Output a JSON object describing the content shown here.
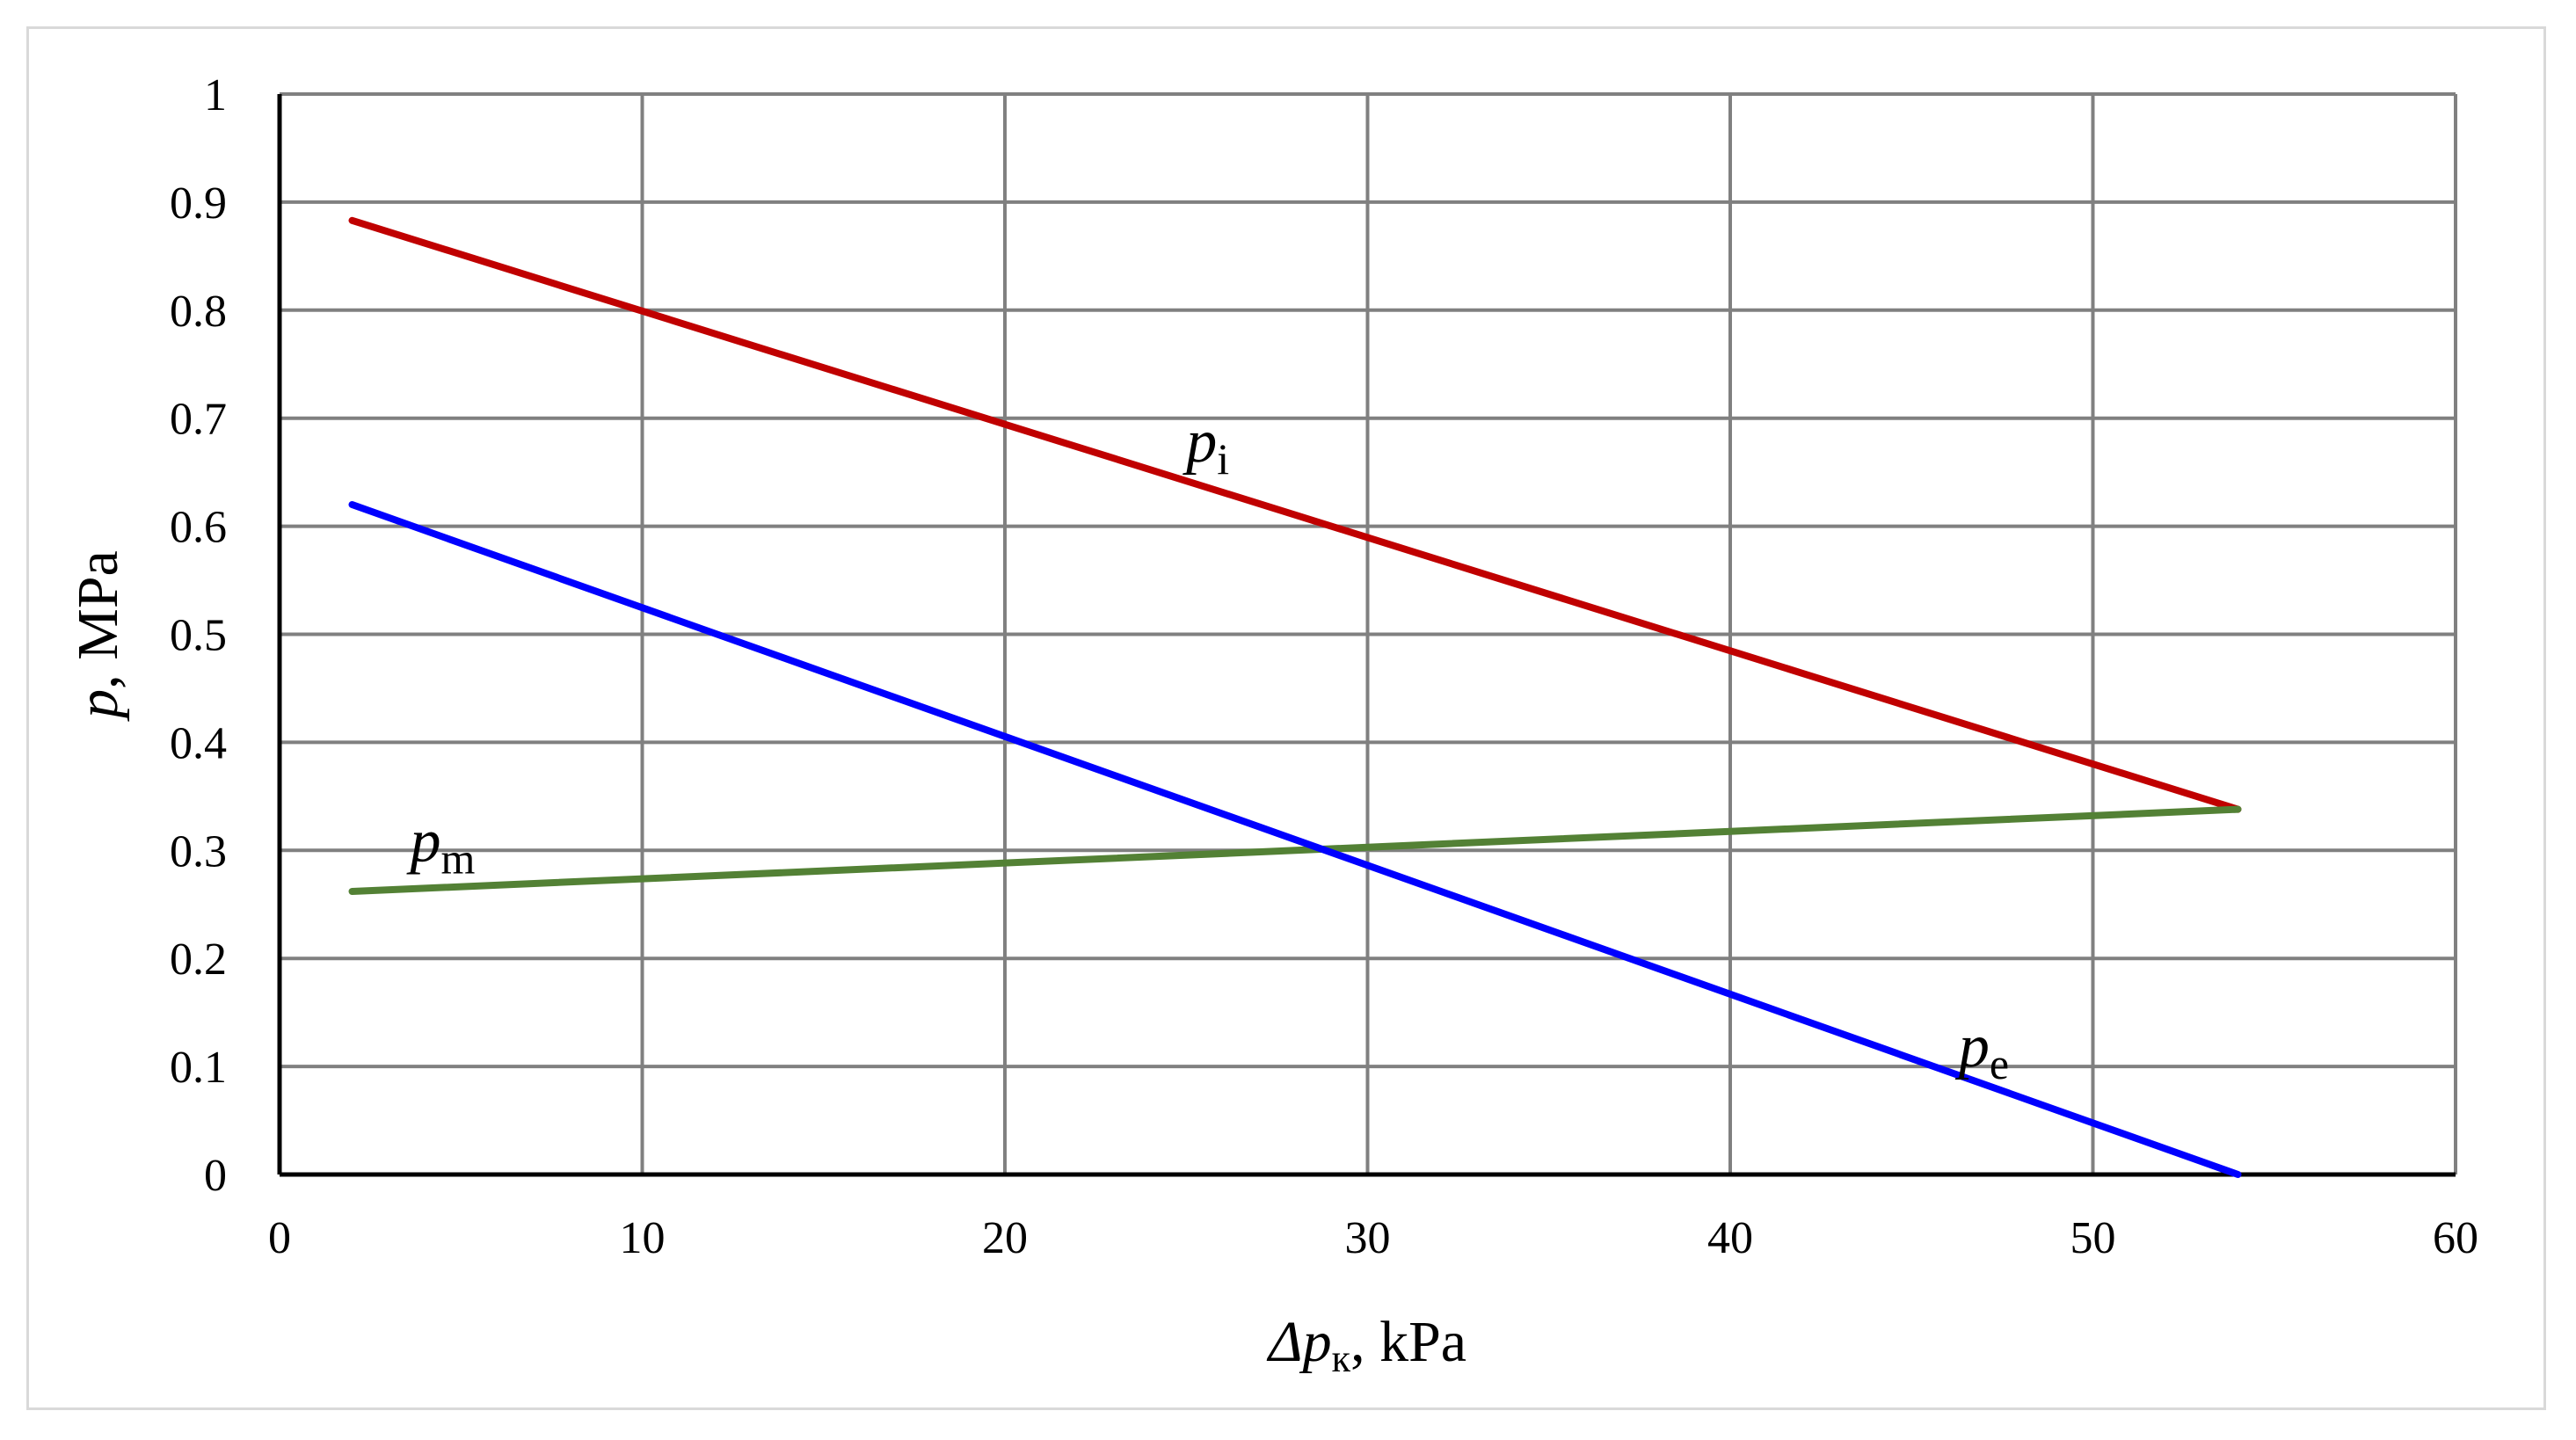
{
  "chart_data": {
    "type": "line",
    "title": "",
    "xlabel": {
      "italic": "Δp",
      "sub": "к",
      "rest": ", kPa"
    },
    "ylabel": {
      "italic": "p",
      "rest": ", MPa"
    },
    "xlim": [
      0,
      60
    ],
    "ylim": [
      0,
      1
    ],
    "xticks": [
      0,
      10,
      20,
      30,
      40,
      50,
      60
    ],
    "yticks": [
      0,
      0.1,
      0.2,
      0.3,
      0.4,
      0.5,
      0.6,
      0.7,
      0.8,
      0.9,
      1
    ],
    "xtick_labels": [
      "0",
      "10",
      "20",
      "30",
      "40",
      "50",
      "60"
    ],
    "ytick_labels": [
      "0",
      "0.1",
      "0.2",
      "0.3",
      "0.4",
      "0.5",
      "0.6",
      "0.7",
      "0.8",
      "0.9",
      "1"
    ],
    "grid": true,
    "series": [
      {
        "id": "pi",
        "name": "p_i",
        "label_main": "p",
        "label_sub": "i",
        "color": "#c00000",
        "x": [
          2,
          54
        ],
        "y": [
          0.883,
          0.338
        ],
        "label_at": [
          25,
          0.66
        ]
      },
      {
        "id": "pm",
        "name": "p_m",
        "label_main": "p",
        "label_sub": "m",
        "color": "#538135",
        "x": [
          2,
          54
        ],
        "y": [
          0.262,
          0.338
        ],
        "label_at": [
          3.6,
          0.29
        ]
      },
      {
        "id": "pe",
        "name": "p_e",
        "label_main": "p",
        "label_sub": "e",
        "color": "#0000ff",
        "x": [
          2,
          54
        ],
        "y": [
          0.62,
          0.0
        ],
        "label_at": [
          46.3,
          0.1
        ]
      }
    ]
  }
}
